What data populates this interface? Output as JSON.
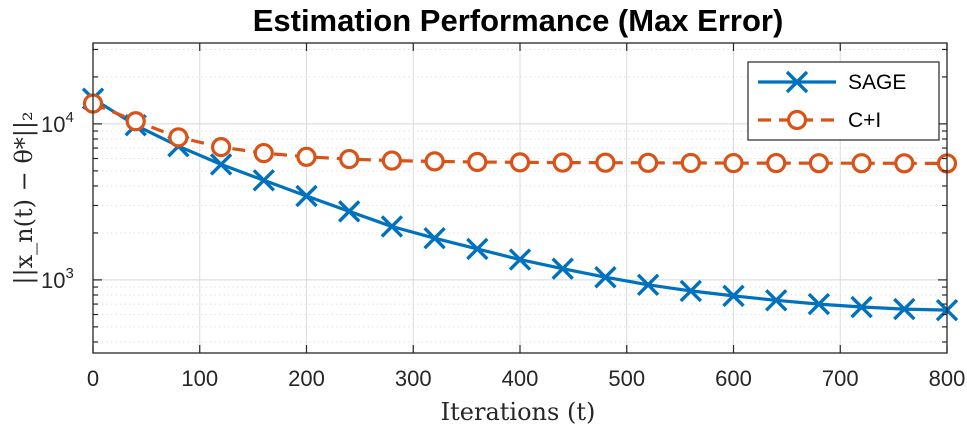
{
  "chart_data": {
    "type": "line",
    "title": "Estimation Performance (Max Error)",
    "xlabel": "Iterations (t)",
    "ylabel": "||x_n(t) − θ*||₂",
    "yscale": "log",
    "xlim": [
      0,
      800
    ],
    "ylim": [
      340,
      33000
    ],
    "grid": true,
    "legend_position": "top-right",
    "x_ticks": [
      0,
      100,
      200,
      300,
      400,
      500,
      600,
      700,
      800
    ],
    "x_tick_labels": [
      "0",
      "100",
      "200",
      "300",
      "400",
      "500",
      "600",
      "700",
      "800"
    ],
    "y_tick_labels": [
      {
        "value": 1000,
        "base": "10",
        "exp": "3"
      },
      {
        "value": 10000,
        "base": "10",
        "exp": "4"
      }
    ],
    "x": [
      0,
      40,
      80,
      120,
      160,
      200,
      240,
      280,
      320,
      360,
      400,
      440,
      480,
      520,
      560,
      600,
      640,
      680,
      720,
      760,
      800
    ],
    "series": [
      {
        "name": "SAGE",
        "color": "#0072BD",
        "line_style": "solid",
        "marker": "x",
        "values": [
          14500,
          9800,
          7200,
          5500,
          4350,
          3450,
          2750,
          2200,
          1850,
          1580,
          1350,
          1180,
          1040,
          930,
          850,
          790,
          740,
          700,
          670,
          650,
          640
        ]
      },
      {
        "name": "C+I",
        "color": "#D95319",
        "line_style": "dashed",
        "marker": "o",
        "values": [
          13500,
          10400,
          8200,
          7100,
          6500,
          6150,
          5950,
          5820,
          5750,
          5700,
          5670,
          5650,
          5640,
          5630,
          5620,
          5610,
          5610,
          5600,
          5600,
          5590,
          5580
        ]
      }
    ]
  }
}
